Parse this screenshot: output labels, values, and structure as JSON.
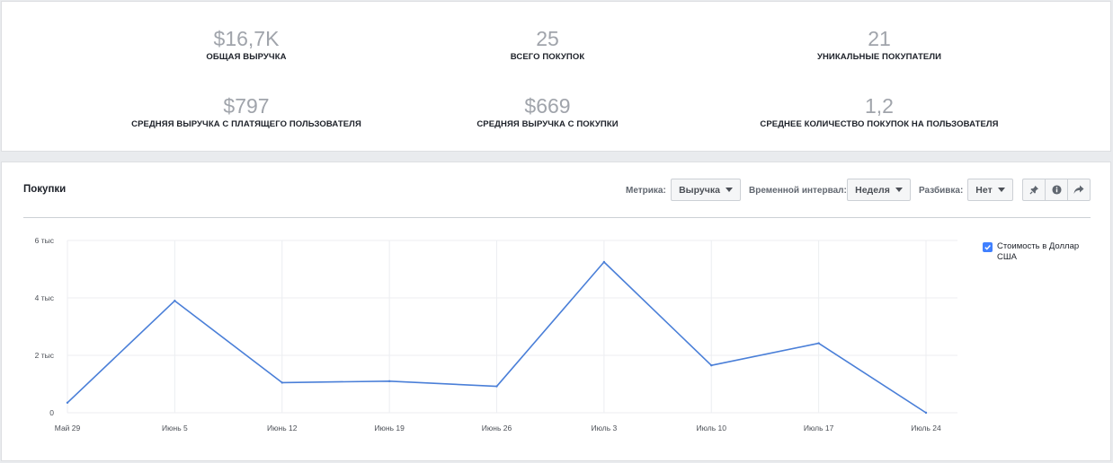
{
  "summary": [
    {
      "value": "$16,7K",
      "label": "ОБЩАЯ ВЫРУЧКА"
    },
    {
      "value": "25",
      "label": "ВСЕГО ПОКУПОК"
    },
    {
      "value": "21",
      "label": "УНИКАЛЬНЫЕ ПОКУПАТЕЛИ"
    },
    {
      "value": "$797",
      "label": "СРЕДНЯЯ ВЫРУЧКА С ПЛАТЯЩЕГО ПОЛЬЗОВАТЕЛЯ"
    },
    {
      "value": "$669",
      "label": "СРЕДНЯЯ ВЫРУЧКА С ПОКУПКИ"
    },
    {
      "value": "1,2",
      "label": "СРЕДНЕЕ КОЛИЧЕСТВО ПОКУПОК НА ПОЛЬЗОВАТЕЛЯ"
    }
  ],
  "purchases": {
    "title": "Покупки",
    "controls": {
      "metric_label": "Метрика:",
      "metric_value": "Выручка",
      "interval_label": "Временной интервал:",
      "interval_value": "Неделя",
      "breakdown_label": "Разбивка:",
      "breakdown_value": "Нет"
    },
    "icons": [
      "pin-icon",
      "info-icon",
      "share-icon"
    ]
  },
  "colors": {
    "line": "#4a7fd8",
    "accent": "#4080ff",
    "grid": "#eceef1"
  },
  "chart_data": {
    "type": "line",
    "categories": [
      "Май 29",
      "Июнь 5",
      "Июнь 12",
      "Июнь 19",
      "Июнь 26",
      "Июль 3",
      "Июль 10",
      "Июль 17",
      "Июль 24"
    ],
    "series": [
      {
        "name": "Стоимость в Доллар США",
        "values": [
          350,
          3900,
          1050,
          1100,
          920,
          5250,
          1650,
          2420,
          0
        ]
      }
    ],
    "yticks": [
      0,
      2000,
      4000,
      6000
    ],
    "ytick_labels": [
      "0",
      "2 тыс",
      "4 тыс",
      "6 тыс"
    ],
    "ylim": [
      0,
      6000
    ],
    "grid": true,
    "legend": "right"
  }
}
